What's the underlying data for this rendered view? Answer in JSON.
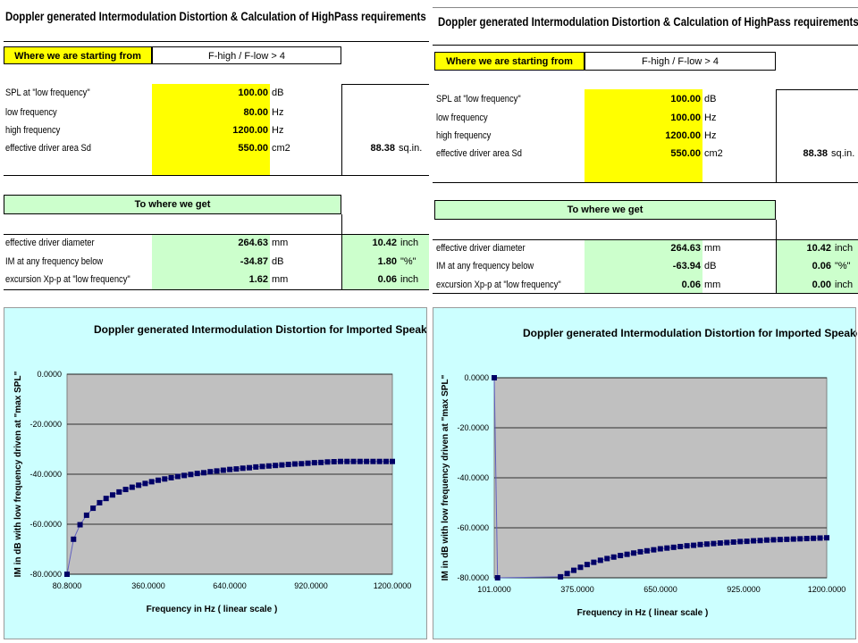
{
  "left": {
    "title": "Doppler generated Intermodulation Distortion & Calculation of HighPass requirements",
    "start_header": "Where we are starting from",
    "ratio_label": "F-high / F-low > 4",
    "inputs": [
      {
        "label": "SPL at \"low frequency\"",
        "value": "100.00",
        "unit": "dB"
      },
      {
        "label": "low frequency",
        "value": "80.00",
        "unit": "Hz"
      },
      {
        "label": "high frequency",
        "value": "1200.00",
        "unit": "Hz"
      },
      {
        "label": "effective driver area Sd",
        "value": "550.00",
        "unit": "cm2"
      }
    ],
    "area_sqin": {
      "value": "88.38",
      "unit": "sq.in."
    },
    "result_header": "To where we get",
    "results": [
      {
        "label": "effective driver diameter",
        "value": "264.63",
        "unit": "mm",
        "alt_value": "10.42",
        "alt_unit": "inch"
      },
      {
        "label": "IM at any frequency below",
        "value": "-34.87",
        "unit": "dB",
        "alt_value": "1.80",
        "alt_unit": "\"%\""
      },
      {
        "label": "excursion Xp-p at \"low frequency\"",
        "value": "1.62",
        "unit": "mm",
        "alt_value": "0.06",
        "alt_unit": "inch"
      }
    ]
  },
  "right": {
    "title": "Doppler generated Intermodulation Distortion & Calculation of HighPass requirements",
    "start_header": "Where we are starting from",
    "ratio_label": "F-high / F-low > 4",
    "inputs": [
      {
        "label": "SPL at \"low frequency\"",
        "value": "100.00",
        "unit": "dB"
      },
      {
        "label": "low frequency",
        "value": "100.00",
        "unit": "Hz"
      },
      {
        "label": "high frequency",
        "value": "1200.00",
        "unit": "Hz"
      },
      {
        "label": "effective driver area Sd",
        "value": "550.00",
        "unit": "cm2"
      }
    ],
    "area_sqin": {
      "value": "88.38",
      "unit": "sq.in."
    },
    "result_header": "To where we get",
    "results": [
      {
        "label": "effective driver diameter",
        "value": "264.63",
        "unit": "mm",
        "alt_value": "10.42",
        "alt_unit": "inch"
      },
      {
        "label": "IM at any frequency below",
        "value": "-63.94",
        "unit": "dB",
        "alt_value": "0.06",
        "alt_unit": "\"%\""
      },
      {
        "label": "excursion Xp-p at \"low frequency\"",
        "value": "0.06",
        "unit": "mm",
        "alt_value": "0.00",
        "alt_unit": "inch"
      }
    ]
  },
  "chart_data": [
    {
      "type": "line",
      "title": "Doppler generated Intermodulation Distortion for Imported Speaker",
      "xlabel": "Frequency in Hz ( linear scale )",
      "ylabel": "IM in dB with low frequency driven at \"max SPL\"",
      "xlim": [
        80.8,
        1200
      ],
      "ylim": [
        -80,
        0
      ],
      "xticks": [
        "80.8000",
        "360.0000",
        "640.0000",
        "920.0000",
        "1200.0000"
      ],
      "yticks": [
        "0.0000",
        "-20.0000",
        "-40.0000",
        "-60.0000",
        "-80.0000"
      ],
      "grid": true,
      "series": [
        {
          "x": [
            80.8,
            103.2,
            125.6,
            148.0,
            170.4,
            192.8,
            215.2,
            237.6,
            260.0,
            282.4,
            304.8,
            327.2,
            349.6,
            372.0,
            394.4,
            416.8,
            439.2,
            461.6,
            484.0,
            506.4,
            528.8,
            551.2,
            573.6,
            596.0,
            618.4,
            640.8,
            663.2,
            685.6,
            708.0,
            730.4,
            752.8,
            775.2,
            797.6,
            820.0,
            842.4,
            864.8,
            887.2,
            909.6,
            932.0,
            954.4,
            976.8,
            999.2,
            1021.6,
            1044.0,
            1066.4,
            1088.8,
            1111.2,
            1133.6,
            1156.0,
            1178.4,
            1200.0
          ],
          "y": [
            -80.0,
            -66.0,
            -60.2,
            -56.4,
            -53.6,
            -51.4,
            -49.7,
            -48.3,
            -47.1,
            -46.1,
            -45.2,
            -44.4,
            -43.7,
            -43.0,
            -42.4,
            -41.9,
            -41.4,
            -40.9,
            -40.5,
            -40.1,
            -39.7,
            -39.4,
            -39.0,
            -38.7,
            -38.4,
            -38.1,
            -37.9,
            -37.6,
            -37.4,
            -37.1,
            -36.9,
            -36.7,
            -36.5,
            -36.3,
            -36.1,
            -35.9,
            -35.8,
            -35.6,
            -35.4,
            -35.3,
            -35.1,
            -35.0,
            -34.9,
            -34.9,
            -34.9,
            -34.9,
            -34.9,
            -34.9,
            -34.9,
            -34.9,
            -34.9
          ]
        }
      ]
    },
    {
      "type": "line",
      "title": "Doppler generated Intermodulation Distortion for Imported Speaker",
      "xlabel": "Frequency in Hz ( linear scale )",
      "ylabel": "IM in dB with low frequency driven at \"max SPL\"",
      "xlim": [
        101,
        1200
      ],
      "ylim": [
        -80,
        0
      ],
      "xticks": [
        "101.0000",
        "375.0000",
        "650.0000",
        "925.0000",
        "1200.0000"
      ],
      "yticks": [
        "0.0000",
        "-20.0000",
        "-40.0000",
        "-60.0000",
        "-80.0000"
      ],
      "grid": true,
      "series": [
        {
          "x": [
            101.0,
            112.0,
            320.0,
            342.0,
            364.0,
            386.0,
            408.0,
            430.0,
            452.0,
            474.0,
            496.0,
            518.0,
            540.0,
            562.0,
            584.0,
            606.0,
            628.0,
            650.0,
            672.0,
            694.0,
            716.0,
            738.0,
            760.0,
            782.0,
            804.0,
            826.0,
            848.0,
            870.0,
            892.0,
            914.0,
            936.0,
            958.0,
            980.0,
            1002.0,
            1024.0,
            1046.0,
            1068.0,
            1090.0,
            1112.0,
            1134.0,
            1156.0,
            1178.0,
            1200.0
          ],
          "y": [
            0.0,
            -80.0,
            -79.6,
            -78.3,
            -77.0,
            -75.8,
            -74.7,
            -73.8,
            -73.0,
            -72.3,
            -71.7,
            -71.1,
            -70.6,
            -70.1,
            -69.6,
            -69.2,
            -68.8,
            -68.4,
            -68.1,
            -67.8,
            -67.5,
            -67.2,
            -67.0,
            -66.7,
            -66.5,
            -66.3,
            -66.1,
            -65.9,
            -65.7,
            -65.5,
            -65.4,
            -65.2,
            -65.1,
            -64.9,
            -64.8,
            -64.7,
            -64.6,
            -64.5,
            -64.4,
            -64.3,
            -64.2,
            -64.1,
            -64.0
          ]
        }
      ]
    }
  ]
}
